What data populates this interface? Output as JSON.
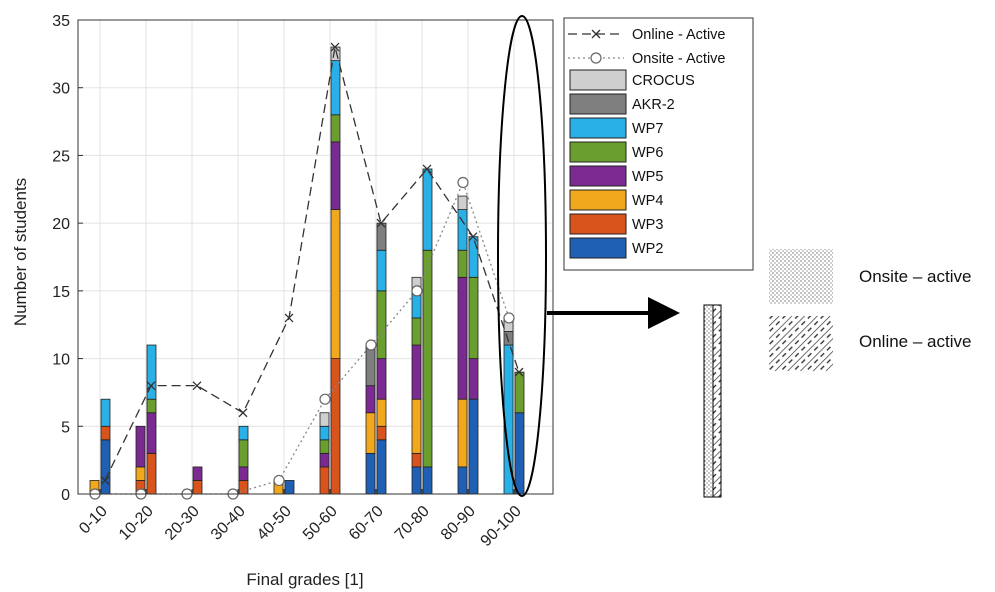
{
  "chart_data": {
    "type": "bar",
    "xlabel": "Final grades [1]",
    "ylabel": "Number of students",
    "ylim": [
      0,
      35
    ],
    "yticks": [
      0,
      5,
      10,
      15,
      20,
      25,
      30,
      35
    ],
    "categories": [
      "0-10",
      "10-20",
      "20-30",
      "30-40",
      "40-50",
      "50-60",
      "60-70",
      "70-80",
      "80-90",
      "90-100"
    ],
    "grid": true,
    "legend_position": "top-right",
    "stack_order": [
      "WP2",
      "WP3",
      "WP4",
      "WP5",
      "WP6",
      "WP7",
      "AKR-2",
      "CROCUS"
    ],
    "colors": {
      "WP2": "#1f5fb4",
      "WP3": "#d9541c",
      "WP4": "#f2a81d",
      "WP5": "#7a2a90",
      "WP6": "#6a9e2f",
      "WP7": "#29b0e6",
      "AKR-2": "#7f7f7f",
      "CROCUS": "#cfcfcf"
    },
    "onsite": {
      "WP2": [
        0,
        0,
        0,
        0,
        0,
        0,
        3,
        2,
        2,
        0
      ],
      "WP3": [
        0,
        1,
        0,
        0,
        0,
        2,
        0,
        1,
        0,
        0
      ],
      "WP4": [
        1,
        1,
        0,
        0,
        1,
        0,
        3,
        4,
        5,
        0
      ],
      "WP5": [
        0,
        3,
        0,
        0,
        0,
        1,
        2,
        4,
        9,
        0
      ],
      "WP6": [
        0,
        0,
        0,
        0,
        0,
        1,
        0,
        2,
        2,
        0
      ],
      "WP7": [
        0,
        0,
        0,
        0,
        0,
        1,
        0,
        2,
        3,
        11
      ],
      "AKR-2": [
        0,
        0,
        0,
        0,
        0,
        0,
        3,
        0,
        0,
        1
      ],
      "CROCUS": [
        0,
        0,
        0,
        0,
        0,
        1,
        0,
        1,
        1,
        1
      ]
    },
    "online": {
      "WP2": [
        4,
        0,
        0,
        0,
        1,
        0,
        4,
        2,
        7,
        6
      ],
      "WP3": [
        1,
        3,
        1,
        1,
        0,
        10,
        1,
        0,
        0,
        0
      ],
      "WP4": [
        0,
        0,
        0,
        0,
        0,
        11,
        2,
        0,
        0,
        0
      ],
      "WP5": [
        0,
        3,
        1,
        1,
        0,
        5,
        3,
        0,
        3,
        0
      ],
      "WP6": [
        0,
        1,
        0,
        2,
        0,
        2,
        5,
        16,
        6,
        3
      ],
      "WP7": [
        2,
        4,
        0,
        1,
        0,
        4,
        3,
        6,
        3,
        0
      ],
      "AKR-2": [
        0,
        0,
        0,
        0,
        0,
        0,
        2,
        0,
        0,
        0
      ],
      "CROCUS": [
        0,
        0,
        0,
        0,
        0,
        1,
        0,
        0,
        0,
        0
      ]
    },
    "series": [
      {
        "name": "Online - Active",
        "values": [
          1,
          8,
          8,
          6,
          13,
          33,
          20,
          24,
          19,
          9
        ]
      },
      {
        "name": "Onsite - Active",
        "values": [
          0,
          0,
          0,
          0,
          1,
          7,
          11,
          15,
          23,
          13
        ]
      }
    ],
    "legend": [
      "Online - Active",
      "Onsite - Active",
      "CROCUS",
      "AKR-2",
      "WP7",
      "WP6",
      "WP5",
      "WP4",
      "WP3",
      "WP2"
    ]
  },
  "side_legend": {
    "onsite_label": "Onsite – active",
    "online_label": "Online – active"
  }
}
